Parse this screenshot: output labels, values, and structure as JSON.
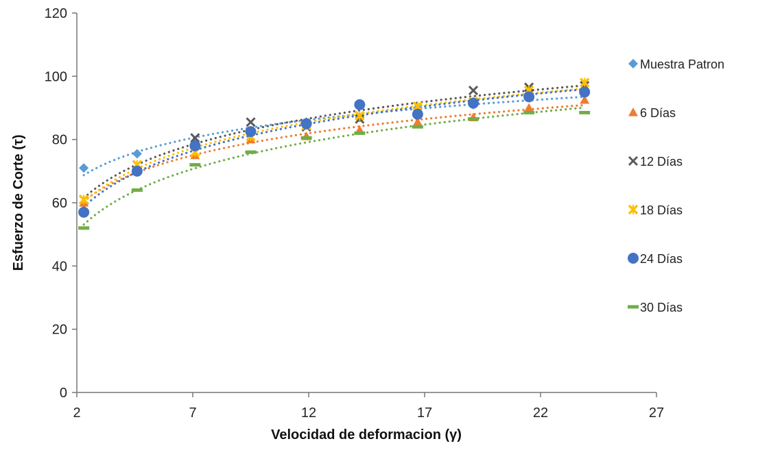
{
  "chart_data": {
    "type": "scatter",
    "title": "",
    "xlabel": "Velocidad de  deformacion (γ)",
    "ylabel": "Esfuerzo de Corte  (τ)",
    "xlim": [
      2,
      27
    ],
    "ylim": [
      0,
      120
    ],
    "x_ticks": [
      "2",
      "7",
      "12",
      "17",
      "22",
      "27"
    ],
    "y_ticks": [
      "0",
      "20",
      "40",
      "60",
      "80",
      "100",
      "120"
    ],
    "grid": false,
    "legend_position": "right",
    "trendline": "logarithmic, dotted",
    "x": [
      2.3,
      4.6,
      7.1,
      9.5,
      11.9,
      14.2,
      16.7,
      19.1,
      21.5,
      23.9
    ],
    "series": [
      {
        "name": "Muestra Patron",
        "color": "#5B9BD5",
        "marker": "diamond",
        "values": [
          71,
          75.5,
          79,
          82,
          85.5,
          87,
          90,
          91,
          93.5,
          95.5
        ]
      },
      {
        "name": "6 Días",
        "color": "#ED7D31",
        "marker": "triangle",
        "values": [
          60,
          71,
          75,
          80,
          81,
          83,
          85.5,
          87,
          90,
          92.5
        ]
      },
      {
        "name": "12 Días",
        "color": "#595959",
        "marker": "x",
        "values": [
          61,
          72,
          80.5,
          85.5,
          84,
          86.5,
          90.5,
          95.5,
          96.5,
          97
        ]
      },
      {
        "name": "18 Días",
        "color": "#FFC000",
        "marker": "star",
        "values": [
          61,
          72,
          76,
          81,
          84.5,
          87.5,
          90.5,
          92,
          95.5,
          98
        ]
      },
      {
        "name": "24 Días",
        "color": "#4472C4",
        "marker": "circle",
        "values": [
          57,
          70,
          78,
          82.5,
          85,
          91,
          88,
          91.5,
          93.5,
          95
        ]
      },
      {
        "name": "30 Días",
        "color": "#70AD47",
        "marker": "dash",
        "values": [
          52,
          64,
          72,
          76,
          80.5,
          82,
          84,
          86.5,
          88.5,
          88.5
        ]
      }
    ]
  }
}
